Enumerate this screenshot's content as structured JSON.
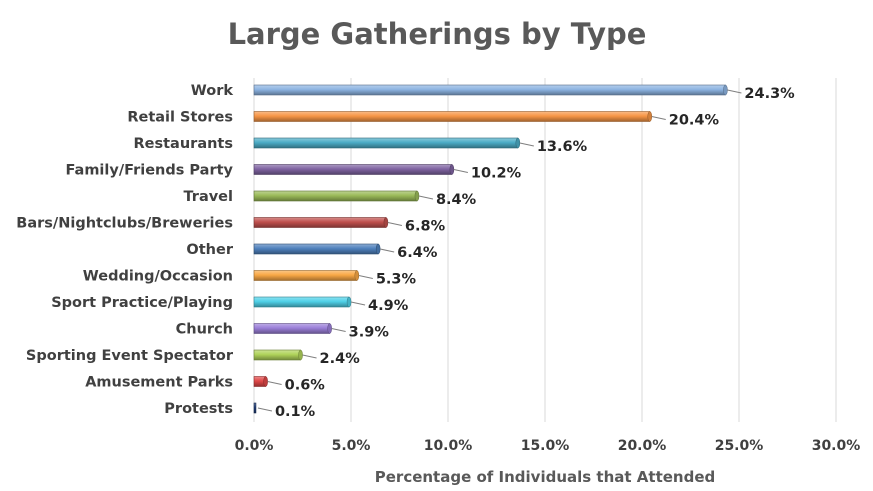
{
  "chart_data": {
    "type": "bar",
    "orientation": "horizontal",
    "title": "Large Gatherings by Type",
    "xlabel": "Percentage of Individuals that Attended",
    "ylabel": "",
    "xlim": [
      0,
      30
    ],
    "xticks": [
      0,
      5,
      10,
      15,
      20,
      25,
      30
    ],
    "xtick_labels": [
      "0.0%",
      "5.0%",
      "10.0%",
      "15.0%",
      "20.0%",
      "25.0%",
      "30.0%"
    ],
    "grid": true,
    "legend": "none",
    "categories": [
      "Work",
      "Retail Stores",
      "Restaurants",
      "Family/Friends Party",
      "Travel",
      "Bars/Nightclubs/Breweries",
      "Other",
      "Wedding/Occasion",
      "Sport Practice/Playing",
      "Church",
      "Sporting Event Spectator",
      "Amusement Parks",
      "Protests"
    ],
    "values": [
      24.3,
      20.4,
      13.6,
      10.2,
      8.4,
      6.8,
      6.4,
      5.3,
      4.9,
      3.9,
      2.4,
      0.6,
      0.1
    ],
    "value_labels": [
      "24.3%",
      "20.4%",
      "13.6%",
      "10.2%",
      "8.4%",
      "6.8%",
      "6.4%",
      "5.3%",
      "4.9%",
      "3.9%",
      "2.4%",
      "0.6%",
      "0.1%"
    ],
    "colors": [
      "#8db4e2",
      "#f79646",
      "#4bacc6",
      "#8064a2",
      "#9bbb59",
      "#c0504d",
      "#4f81bd",
      "#f9a845",
      "#4fd1e8",
      "#9b7fd8",
      "#b0d35a",
      "#e04848",
      "#1f3d7a"
    ]
  }
}
